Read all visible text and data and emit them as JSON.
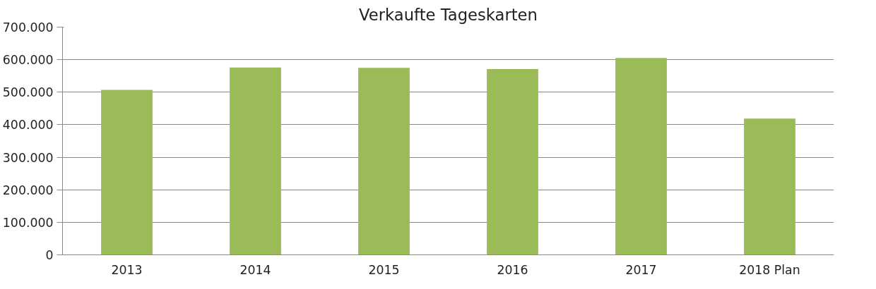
{
  "chart_data": {
    "type": "bar",
    "title": "Verkaufte Tageskarten",
    "categories": [
      "2013",
      "2014",
      "2015",
      "2016",
      "2017",
      "2018 Plan"
    ],
    "values": [
      507000,
      576000,
      575000,
      571000,
      605000,
      419000
    ],
    "color": "#9bbb59",
    "ylim": [
      0,
      700000
    ],
    "yticks": [
      {
        "value": 0,
        "label": "0"
      },
      {
        "value": 100000,
        "label": "100.000"
      },
      {
        "value": 200000,
        "label": "200.000"
      },
      {
        "value": 300000,
        "label": "300.000"
      },
      {
        "value": 400000,
        "label": "400.000"
      },
      {
        "value": 500000,
        "label": "500.000"
      },
      {
        "value": 600000,
        "label": "600.000"
      },
      {
        "value": 700000,
        "label": "700.000"
      }
    ],
    "grid": "y"
  }
}
